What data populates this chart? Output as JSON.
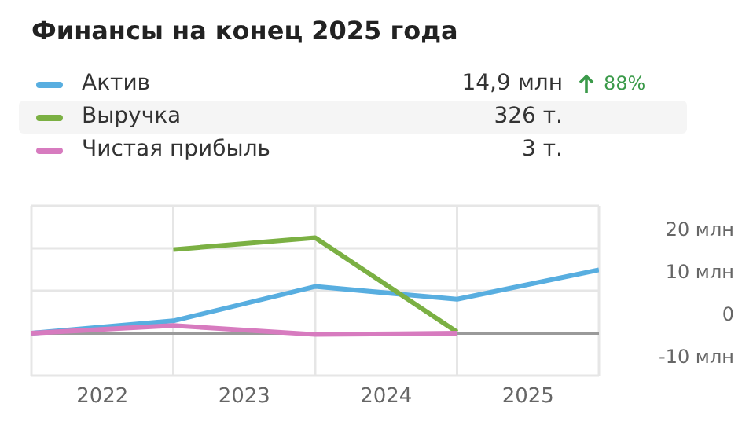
{
  "chart_data": {
    "type": "line",
    "title": "Финансы на конец 2025 года",
    "x": [
      2021,
      2022,
      2023,
      2024,
      2025
    ],
    "series": [
      {
        "name": "Актив",
        "color": "#58aee0",
        "values": [
          0,
          2.9,
          11,
          8,
          14.9
        ]
      },
      {
        "name": "Выручка",
        "color": "#7bb043",
        "values": [
          null,
          19.7,
          22.5,
          0.3,
          null
        ]
      },
      {
        "name": "Чистая прибыль",
        "color": "#d77bbf",
        "values": [
          0,
          1.8,
          -0.3,
          0,
          null
        ]
      }
    ],
    "annotations": [
      "14,9 млн",
      "326 т.",
      "3 т.",
      "88%"
    ],
    "xlim": [
      2021,
      2025
    ],
    "xticks": [
      {
        "value": 2021,
        "label": null
      },
      {
        "value": 2021.5,
        "label": "2022"
      },
      {
        "value": 2022,
        "label": null
      },
      {
        "value": 2022.5,
        "label": "2023"
      },
      {
        "value": 2023,
        "label": null
      },
      {
        "value": 2023.5,
        "label": "2024"
      },
      {
        "value": 2024,
        "label": null
      },
      {
        "value": 2024.5,
        "label": "2025"
      },
      {
        "value": 2025,
        "label": null
      }
    ],
    "ylim": [
      -10,
      30
    ],
    "yticks": [
      {
        "value": -10,
        "label": "-10 млн"
      },
      0,
      {
        "value": 10,
        "label": "10 млн"
      },
      {
        "value": 20,
        "label": "20 млн"
      },
      {
        "value": 30,
        "label": null
      }
    ],
    "ref_lines": [
      {
        "axis": "y",
        "value": 0,
        "label": null,
        "color": "#9a9a9a"
      }
    ],
    "grid": true,
    "legend": "top",
    "marker": "none",
    "line_style": "solid"
  }
}
